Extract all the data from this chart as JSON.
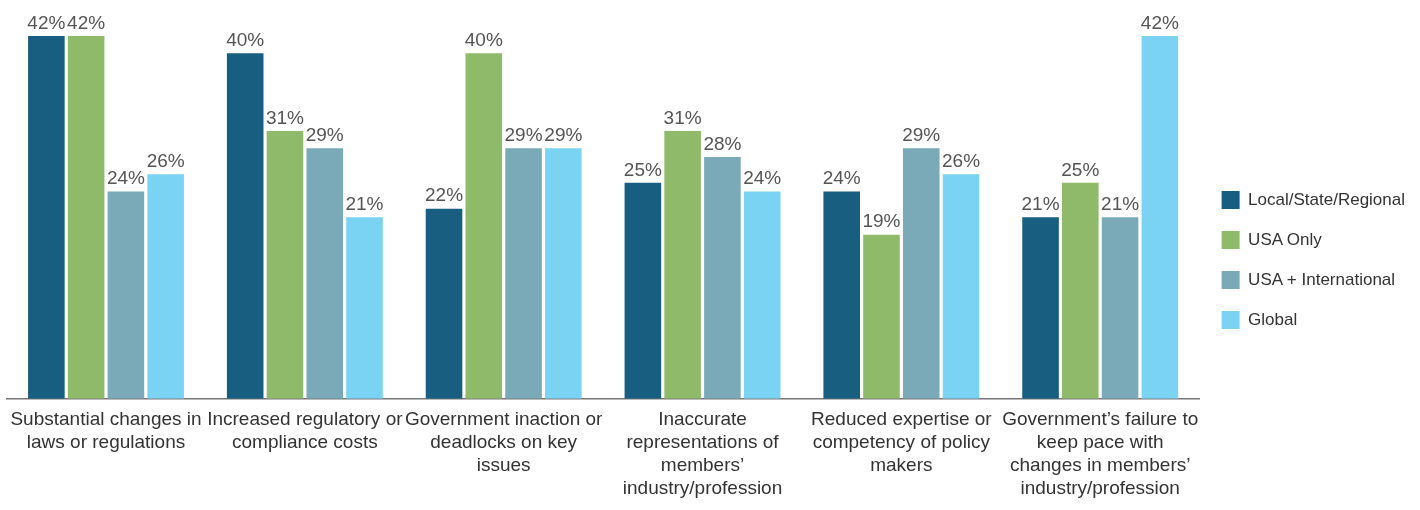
{
  "chart_data": {
    "type": "bar",
    "categories": [
      "Substantial changes in laws or regulations",
      "Increased regulatory or compliance costs",
      "Government inaction or deadlocks on key issues",
      "Inaccurate representations of members’ industry/profession",
      "Reduced expertise or competency of policy makers",
      "Government’s failure to keep pace with changes in members’ industry/profession"
    ],
    "series": [
      {
        "name": "Local/State/Regional",
        "color": "#175e80",
        "values": [
          42,
          40,
          22,
          25,
          24,
          21
        ],
        "value_labels": [
          "42%",
          "40%",
          "22%",
          "25%",
          "24%",
          "21%"
        ]
      },
      {
        "name": "USA Only",
        "color": "#8fba6a",
        "values": [
          42,
          31,
          40,
          31,
          19,
          25
        ],
        "value_labels": [
          "42%",
          "31%",
          "40%",
          "31%",
          "19%",
          "25%"
        ]
      },
      {
        "name": "USA + International",
        "color": "#7aaab8",
        "values": [
          24,
          29,
          29,
          28,
          29,
          21
        ],
        "value_labels": [
          "24%",
          "29%",
          "29%",
          "28%",
          "29%",
          "21%"
        ]
      },
      {
        "name": "Global",
        "color": "#7ad3f2",
        "values": [
          26,
          21,
          29,
          24,
          26,
          42
        ],
        "value_labels": [
          "26%",
          "21%",
          "29%",
          "24%",
          "26%",
          "42%"
        ]
      }
    ],
    "legend": "right",
    "grid": false
  }
}
